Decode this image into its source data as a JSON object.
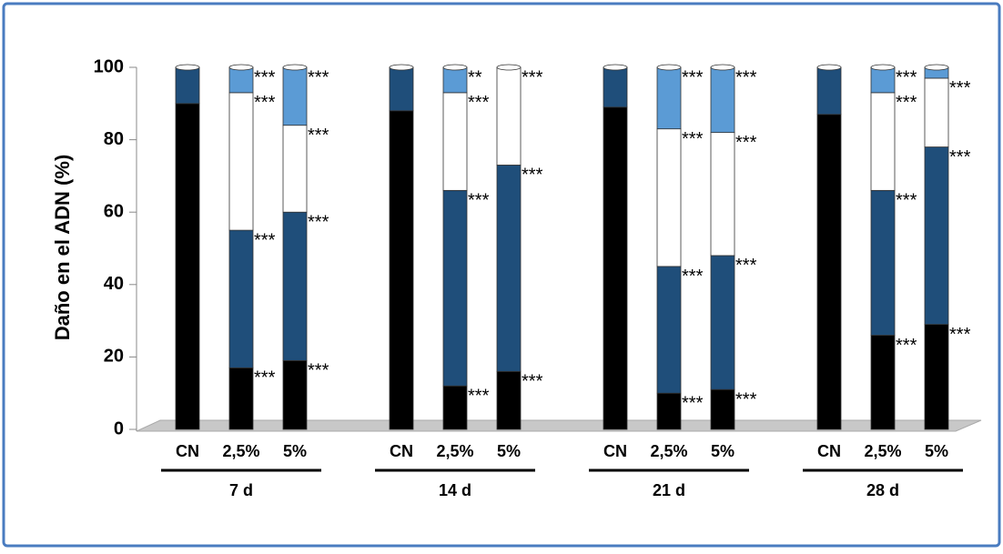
{
  "chart_data": {
    "type": "stacked-cylinder",
    "y_label": "Daño en el ADN (%)",
    "ylim": [
      0,
      100
    ],
    "yticks": [
      0,
      20,
      40,
      60,
      80,
      100
    ],
    "groups": [
      "7 d",
      "14 d",
      "21 d",
      "28 d"
    ],
    "categories": [
      "CN",
      "2,5%",
      "5%",
      "CN",
      "2,5%",
      "5%",
      "CN",
      "2,5%",
      "5%",
      "CN",
      "2,5%",
      "5%"
    ],
    "series": [
      {
        "color": "#000000",
        "values": [
          90,
          17,
          19,
          88,
          12,
          16,
          89,
          10,
          11,
          87,
          26,
          29
        ],
        "significance": [
          null,
          "***",
          "***",
          null,
          "***",
          "***",
          null,
          "***",
          "***",
          null,
          "***",
          "***"
        ]
      },
      {
        "color": "#1f4e7a",
        "values": [
          10,
          38,
          41,
          12,
          54,
          57,
          11,
          35,
          37,
          13,
          40,
          49
        ],
        "significance": [
          null,
          "***",
          "***",
          null,
          "***",
          "***",
          null,
          "***",
          "***",
          null,
          "***",
          "***"
        ]
      },
      {
        "color": "#ffffff",
        "values": [
          0,
          38,
          24,
          0,
          27,
          27,
          0,
          38,
          34,
          0,
          27,
          19
        ],
        "significance": [
          null,
          "***",
          "***",
          null,
          "***",
          "***",
          null,
          "***",
          "***",
          null,
          "***",
          "***"
        ]
      },
      {
        "color": "#5b9bd5",
        "values": [
          0,
          7,
          16,
          0,
          7,
          0,
          0,
          17,
          18,
          0,
          7,
          3
        ],
        "significance": [
          null,
          "***",
          "***",
          null,
          "**",
          null,
          null,
          "***",
          "***",
          null,
          "***",
          null
        ]
      }
    ]
  }
}
